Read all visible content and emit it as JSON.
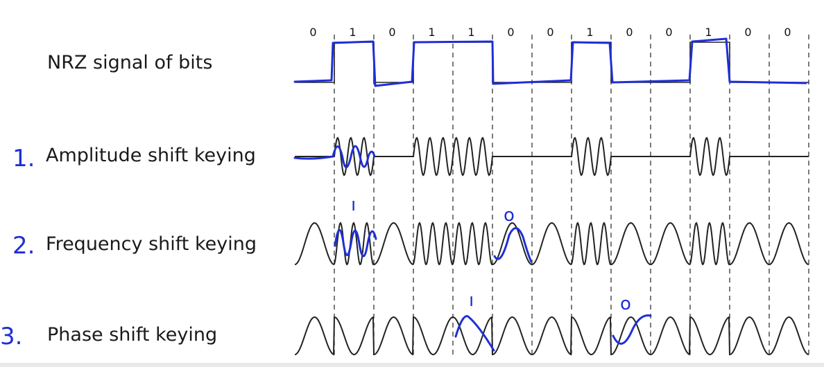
{
  "diagram": {
    "bits": [
      "0",
      "1",
      "0",
      "1",
      "1",
      "0",
      "0",
      "1",
      "0",
      "0",
      "1",
      "0",
      "0"
    ],
    "rows": [
      {
        "id": "nrz",
        "number": "",
        "label": "NRZ signal of bits"
      },
      {
        "id": "ask",
        "number": "1.",
        "label": "Amplitude shift keying"
      },
      {
        "id": "fsk",
        "number": "2.",
        "label": "Frequency shift keying"
      },
      {
        "id": "psk",
        "number": "3.",
        "label": "Phase shift keying"
      }
    ],
    "annotations": {
      "fsk_one": "ı",
      "fsk_zero": "o",
      "psk_one": "ı",
      "psk_zero": "o"
    },
    "colors": {
      "signal": "#222222",
      "ink": "#1e2fd6",
      "grid": "#333333"
    }
  }
}
